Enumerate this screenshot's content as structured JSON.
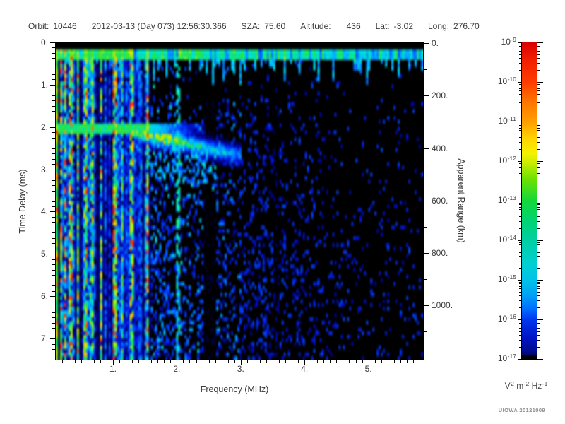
{
  "header": {
    "fields": [
      {
        "label": "Orbit:",
        "value": "10446"
      },
      {
        "label": "",
        "value": "2012-03-13 (Day 073) 12:56:30.366"
      },
      {
        "label": "SZA:",
        "value": "75.60"
      },
      {
        "label": "Altitude:",
        "value": "436",
        "wide": true
      },
      {
        "label": "Lat:",
        "value": "-3.02"
      },
      {
        "label": "Long:",
        "value": "276.70"
      }
    ]
  },
  "chart_data": {
    "type": "heatmap",
    "title": "",
    "xlabel": "Frequency (MHz)",
    "ylabel": "Time Delay (ms)",
    "y2label": "Apparent Range (km)",
    "x_range_mhz": [
      0.1,
      5.86
    ],
    "y_range_ms": [
      0,
      7.5
    ],
    "y_inverted": true,
    "y2_range_km": [
      0,
      1200
    ],
    "x_major_ticks": [
      {
        "value": 1,
        "label": "1."
      },
      {
        "value": 2,
        "label": "2."
      },
      {
        "value": 3,
        "label": "3."
      },
      {
        "value": 4,
        "label": "4."
      },
      {
        "value": 5,
        "label": "5."
      }
    ],
    "x_minor_step_mhz": 0.1,
    "y_major_ticks": [
      {
        "value": 0,
        "label": "0."
      },
      {
        "value": 1,
        "label": "1."
      },
      {
        "value": 2,
        "label": "2."
      },
      {
        "value": 3,
        "label": "3."
      },
      {
        "value": 4,
        "label": "4."
      },
      {
        "value": 5,
        "label": "5."
      },
      {
        "value": 6,
        "label": "6."
      },
      {
        "value": 7,
        "label": "7."
      }
    ],
    "y_minor_step_ms": 0.125,
    "y2_major_ticks": [
      {
        "value": 0,
        "label": "0."
      },
      {
        "value": 200,
        "label": "200."
      },
      {
        "value": 400,
        "label": "400."
      },
      {
        "value": 600,
        "label": "600."
      },
      {
        "value": 800,
        "label": "800."
      },
      {
        "value": 1000,
        "label": "1000."
      }
    ],
    "y2_minor_step_km": 100,
    "colorbar": {
      "scale": "log10",
      "units": "V^2 m^-2 Hz^-1",
      "tick_labels": [
        "10^-9",
        "10^-10",
        "10^-11",
        "10^-12",
        "10^-13",
        "10^-14",
        "10^-15",
        "10^-16",
        "10^-17"
      ],
      "gradient": [
        {
          "pos": 0.0,
          "color": "#d80000"
        },
        {
          "pos": 0.05,
          "color": "#f01c00"
        },
        {
          "pos": 0.125,
          "color": "#ff3c00"
        },
        {
          "pos": 0.19,
          "color": "#ff7700"
        },
        {
          "pos": 0.25,
          "color": "#ff9d00"
        },
        {
          "pos": 0.305,
          "color": "#ffd400"
        },
        {
          "pos": 0.35,
          "color": "#f5f200"
        },
        {
          "pos": 0.375,
          "color": "#d2ee00"
        },
        {
          "pos": 0.43,
          "color": "#6fe200"
        },
        {
          "pos": 0.5,
          "color": "#14d83a"
        },
        {
          "pos": 0.565,
          "color": "#00d474"
        },
        {
          "pos": 0.625,
          "color": "#00cfa2"
        },
        {
          "pos": 0.7,
          "color": "#00cfd2"
        },
        {
          "pos": 0.75,
          "color": "#00c2e8"
        },
        {
          "pos": 0.8,
          "color": "#009ff5"
        },
        {
          "pos": 0.84,
          "color": "#0070ff"
        },
        {
          "pos": 0.875,
          "color": "#0038f0"
        },
        {
          "pos": 0.93,
          "color": "#0016c8"
        },
        {
          "pos": 0.97,
          "color": "#000d96"
        },
        {
          "pos": 0.988,
          "color": "#000766"
        },
        {
          "pos": 0.991,
          "color": "#000000"
        },
        {
          "pos": 1.0,
          "color": "#000000"
        }
      ]
    },
    "features": {
      "background_color": "#000000",
      "top_blank_delay_ms": [
        0,
        0.185
      ],
      "surface_echo_band": {
        "delay_ms": [
          0.185,
          0.43
        ],
        "freq_mhz": [
          0.1,
          5.86
        ],
        "has_drips": true
      },
      "plasma_stripe_region": {
        "freq_max_mhz": 1.58,
        "bright_line_freqs_mhz": [
          0.12,
          0.17,
          0.24,
          0.33,
          0.46,
          0.57,
          0.68,
          0.8,
          1.0,
          1.3,
          1.53
        ],
        "extra_line_mhz": 2.02
      },
      "band_2ms": {
        "delay_center_ms": 2.03,
        "half_width_ms": 0.1,
        "freq_max_mhz": 2.45
      },
      "ionosphere_trace": {
        "points_mhz_ms": [
          [
            1.35,
            2.1
          ],
          [
            1.6,
            2.25
          ],
          [
            1.9,
            2.3
          ],
          [
            2.2,
            2.4
          ],
          [
            2.6,
            2.55
          ],
          [
            2.95,
            2.65
          ]
        ],
        "peak_freq_mhz": [
          1.5,
          2.02
        ],
        "peak_level": "yellow-green"
      },
      "quiet_columns_mhz": [
        [
          2.42,
          2.62
        ],
        [
          3.52,
          3.62
        ]
      ],
      "noise_seed": 20121009
    }
  },
  "watermark": {
    "credit": "UIOWA 20121009"
  }
}
